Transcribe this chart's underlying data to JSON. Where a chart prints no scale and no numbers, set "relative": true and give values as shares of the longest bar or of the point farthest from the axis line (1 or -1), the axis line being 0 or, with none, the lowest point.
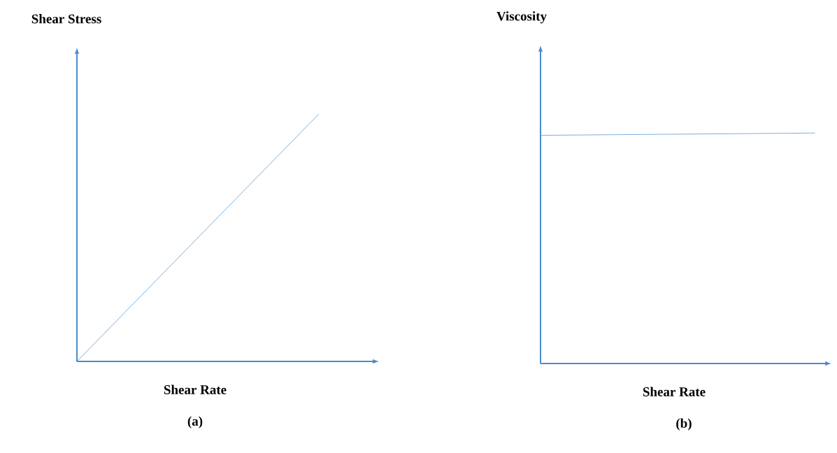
{
  "chart_data": [
    {
      "type": "line",
      "relative": true,
      "categories": [
        null,
        null
      ],
      "values": [
        0,
        1
      ],
      "color": "#5b9bd5",
      "xlabel": "Shear Rate",
      "ylabel": "Shear Stress",
      "annotations": [
        "(a)"
      ]
    },
    {
      "type": "line",
      "relative": true,
      "categories": [
        null,
        null
      ],
      "values": [
        0.99,
        1
      ],
      "color": "#5b9bd5",
      "xlabel": "Shear Rate",
      "ylabel": "Viscosity",
      "annotations": [
        "(b)"
      ]
    }
  ]
}
